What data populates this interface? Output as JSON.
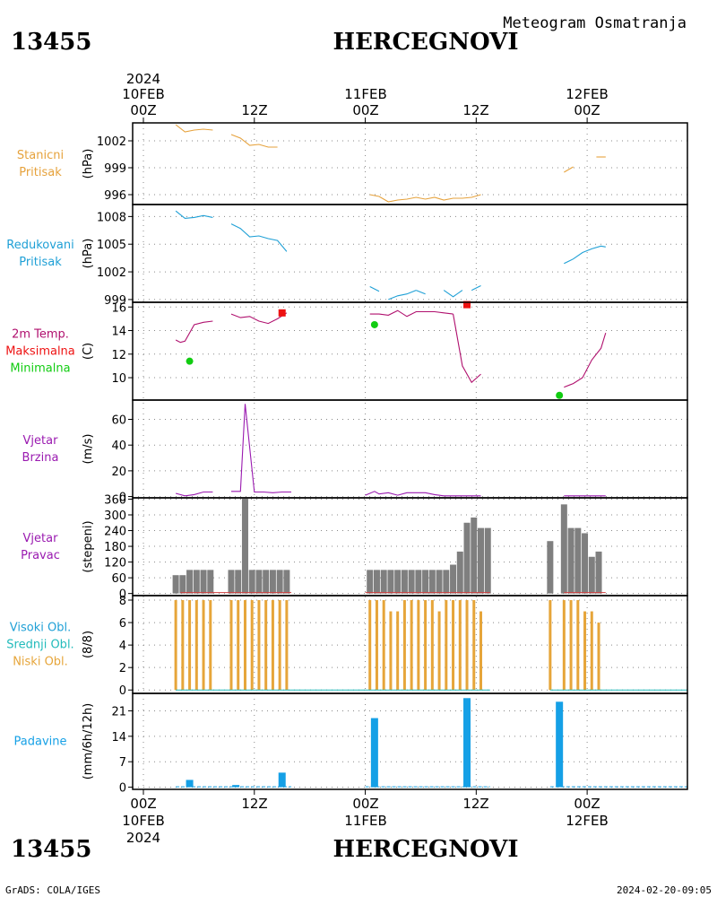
{
  "header": {
    "station_id": "13455",
    "station_name": "HERCEGNOVI",
    "meteogram_title": "Meteogram Osmatranja"
  },
  "time_axis": {
    "year_top": "2024",
    "year_bottom": "2024",
    "day_labels": [
      "10FEB",
      "11FEB",
      "12FEB"
    ],
    "hour_labels": [
      "00Z",
      "12Z",
      "00Z",
      "12Z",
      "00Z"
    ]
  },
  "footer": {
    "left": "GrADS: COLA/IGES",
    "right": "2024-02-20-09:05"
  },
  "colors": {
    "pressure_station": "#e6a23c",
    "pressure_reduced": "#1fa0d6",
    "temperature": "#b0106e",
    "tmax": "#ee1111",
    "tmin": "#11cc11",
    "wind": "#9a1ab0",
    "wind_dir_bar": "#7f7f7f",
    "cloud_low": "#e6a53a",
    "cloud_mid": "#22bbbb",
    "precip": "#15a0e6"
  },
  "chart_data": [
    {
      "type": "line",
      "panel": "station_pressure",
      "label_lines": [
        "Stanicni",
        "Pritisak"
      ],
      "unit": "(hPa)",
      "yticks": [
        996,
        999,
        1002
      ],
      "ylim": [
        994.9,
        1004.0
      ],
      "x_range_h": [
        0,
        50
      ],
      "segments": [
        {
          "x": [
            3.5,
            4.5,
            5.5,
            6.5,
            7.5
          ],
          "y": [
            1003.8,
            1003.0,
            1003.2,
            1003.3,
            1003.2
          ]
        },
        {
          "x": [
            9.5,
            10.5,
            11.5,
            12.5,
            13.5,
            14.5
          ],
          "y": [
            1002.7,
            1002.3,
            1001.5,
            1001.6,
            1001.3,
            1001.3
          ]
        },
        {
          "x": [
            24.5,
            25.5,
            26.5,
            27.5,
            28.5,
            29.5,
            30.5,
            31.5,
            32.5,
            33.5,
            34.5,
            35.5,
            36.5
          ],
          "y": [
            996.0,
            995.8,
            995.2,
            995.4,
            995.5,
            995.7,
            995.5,
            995.7,
            995.4,
            995.6,
            995.6,
            995.7,
            996.0
          ]
        },
        {
          "x": [
            45.5,
            46.5
          ],
          "y": [
            998.5,
            999.1
          ]
        },
        {
          "x": [
            49.0,
            50.0
          ],
          "y": [
            1000.2,
            1000.2
          ]
        }
      ]
    },
    {
      "type": "line",
      "panel": "reduced_pressure",
      "label_lines": [
        "Redukovani",
        "Pritisak"
      ],
      "unit": "(hPa)",
      "yticks": [
        999,
        1002,
        1005,
        1008
      ],
      "ylim": [
        998.7,
        1009.3
      ],
      "x_range_h": [
        0,
        50
      ],
      "segments": [
        {
          "x": [
            3.5,
            4.5,
            5.5,
            6.5,
            7.5
          ],
          "y": [
            1008.6,
            1007.8,
            1007.9,
            1008.1,
            1007.9
          ]
        },
        {
          "x": [
            9.5,
            10.5,
            11.5,
            12.5,
            13.5,
            14.5,
            15.5
          ],
          "y": [
            1007.2,
            1006.7,
            1005.8,
            1005.9,
            1005.6,
            1005.4,
            1004.2
          ]
        },
        {
          "x": [
            24.5,
            25.5
          ],
          "y": [
            1000.4,
            999.9
          ]
        },
        {
          "x": [
            26.5,
            27.5,
            28.5,
            29.5
          ],
          "y": [
            999.0,
            999.4,
            999.6,
            1000.0
          ]
        },
        {
          "x": [
            29.5,
            30.5
          ],
          "y": [
            1000.0,
            999.6
          ]
        },
        {
          "x": [
            32.5,
            33.5,
            34.5
          ],
          "y": [
            1000.0,
            999.3,
            1000.0
          ]
        },
        {
          "x": [
            35.5,
            36.5
          ],
          "y": [
            1000.0,
            1000.5
          ]
        },
        {
          "x": [
            45.5,
            46.5,
            47.5,
            48.5,
            49.5,
            50.0
          ],
          "y": [
            1002.9,
            1003.4,
            1004.1,
            1004.5,
            1004.8,
            1004.7
          ]
        }
      ]
    },
    {
      "type": "line",
      "panel": "temperature",
      "label_lines": [
        "2m Temp.",
        "Maksimalna",
        "Minimalna"
      ],
      "unit": "(C)",
      "yticks": [
        10,
        12,
        14,
        16
      ],
      "ylim": [
        8.1,
        16.4
      ],
      "x_range_h": [
        0,
        50
      ],
      "segments": [
        {
          "x": [
            3.5,
            4.0,
            4.5,
            5.5,
            6.5,
            7.5
          ],
          "y": [
            13.2,
            13.0,
            13.1,
            14.5,
            14.7,
            14.8
          ]
        },
        {
          "x": [
            9.5,
            10.5,
            11.5,
            12.5,
            13.5,
            14.5,
            15.5
          ],
          "y": [
            15.4,
            15.1,
            15.2,
            14.8,
            14.6,
            15.0,
            15.5
          ]
        },
        {
          "x": [
            24.5,
            25.5,
            26.5,
            27.5,
            28.5,
            29.5,
            30.5,
            31.5,
            32.5,
            33.5
          ],
          "y": [
            15.4,
            15.4,
            15.3,
            15.7,
            15.2,
            15.6,
            15.6,
            15.6,
            15.5,
            15.4
          ]
        },
        {
          "x": [
            33.5,
            34.5,
            35.5,
            36.5
          ],
          "y": [
            15.4,
            11.0,
            9.6,
            10.3
          ]
        },
        {
          "x": [
            45.5,
            46.5,
            47.5,
            48.5,
            49.5,
            50.0
          ],
          "y": [
            9.2,
            9.5,
            10.0,
            11.5,
            12.5,
            13.8
          ]
        }
      ],
      "tmax_points": [
        {
          "x": 15.0,
          "y": 15.5
        },
        {
          "x": 35.0,
          "y": 16.2
        }
      ],
      "tmin_points": [
        {
          "x": 5.0,
          "y": 11.4
        },
        {
          "x": 25.0,
          "y": 14.5
        },
        {
          "x": 45.0,
          "y": 8.5
        }
      ]
    },
    {
      "type": "line",
      "panel": "wind_speed",
      "label_lines": [
        "Vjetar",
        "Brzina"
      ],
      "unit": "(m/s)",
      "yticks": [
        0,
        20,
        40,
        60
      ],
      "ylim": [
        -1.0,
        75.0
      ],
      "x_range_h": [
        0,
        50
      ],
      "segments": [
        {
          "x": [
            3.5,
            4.5,
            5.5,
            6.5,
            7.5
          ],
          "y": [
            2.5,
            0.5,
            1.5,
            3.5,
            3.5
          ]
        },
        {
          "x": [
            9.5,
            10.5,
            11.0,
            12.0,
            13.0,
            14.0,
            15.0,
            16.0
          ],
          "y": [
            4.0,
            4.0,
            72.0,
            3.5,
            3.5,
            3.0,
            3.5,
            3.5
          ]
        },
        {
          "x": [
            24.0,
            25.0,
            25.5,
            26.5,
            27.5,
            28.5,
            29.5,
            30.5,
            31.5,
            32.5,
            33.5,
            34.5,
            35.5,
            36.5
          ],
          "y": [
            1.0,
            4.0,
            2.0,
            3.0,
            1.0,
            3.0,
            3.0,
            3.0,
            1.5,
            0.5,
            0.5,
            0.5,
            0.5,
            0.5
          ]
        },
        {
          "x": [
            45.5,
            46.5,
            47.5,
            48.5,
            49.5,
            50.0
          ],
          "y": [
            0.5,
            0.5,
            0.5,
            0.5,
            0.5,
            0.5
          ]
        }
      ]
    },
    {
      "type": "bar",
      "panel": "wind_direction",
      "label_lines": [
        "Vjetar",
        "Pravac"
      ],
      "unit": "(stepeni)",
      "yticks": [
        0,
        60,
        120,
        180,
        240,
        300,
        360
      ],
      "ylim": [
        -8,
        365
      ],
      "x_range_h": [
        0,
        50
      ],
      "bars": [
        {
          "x": 3.5,
          "v": 70
        },
        {
          "x": 4.25,
          "v": 70
        },
        {
          "x": 5.0,
          "v": 90
        },
        {
          "x": 5.75,
          "v": 90
        },
        {
          "x": 6.5,
          "v": 90
        },
        {
          "x": 7.25,
          "v": 90
        },
        {
          "x": 9.5,
          "v": 90
        },
        {
          "x": 10.25,
          "v": 90
        },
        {
          "x": 11.0,
          "v": 370
        },
        {
          "x": 11.75,
          "v": 90
        },
        {
          "x": 12.5,
          "v": 90
        },
        {
          "x": 13.25,
          "v": 90
        },
        {
          "x": 14.0,
          "v": 90
        },
        {
          "x": 14.75,
          "v": 90
        },
        {
          "x": 15.5,
          "v": 90
        },
        {
          "x": 24.5,
          "v": 90
        },
        {
          "x": 25.25,
          "v": 90
        },
        {
          "x": 26.0,
          "v": 90
        },
        {
          "x": 26.75,
          "v": 90
        },
        {
          "x": 27.5,
          "v": 90
        },
        {
          "x": 28.25,
          "v": 90
        },
        {
          "x": 29.0,
          "v": 90
        },
        {
          "x": 29.75,
          "v": 90
        },
        {
          "x": 30.5,
          "v": 90
        },
        {
          "x": 31.25,
          "v": 90
        },
        {
          "x": 32.0,
          "v": 90
        },
        {
          "x": 32.75,
          "v": 90
        },
        {
          "x": 33.5,
          "v": 110
        },
        {
          "x": 34.25,
          "v": 160
        },
        {
          "x": 35.0,
          "v": 270
        },
        {
          "x": 35.75,
          "v": 290
        },
        {
          "x": 36.5,
          "v": 250
        },
        {
          "x": 37.25,
          "v": 250
        },
        {
          "x": 44.0,
          "v": 200
        },
        {
          "x": 45.5,
          "v": 340
        },
        {
          "x": 46.25,
          "v": 250
        },
        {
          "x": 47.0,
          "v": 250
        },
        {
          "x": 47.75,
          "v": 230
        },
        {
          "x": 48.5,
          "v": 140
        },
        {
          "x": 49.25,
          "v": 160
        }
      ]
    },
    {
      "type": "bar",
      "panel": "cloud_cover",
      "label_lines": [
        "Visoki Obl.",
        "Srednji Obl.",
        "Niski Obl."
      ],
      "unit": "(8/8)",
      "yticks": [
        0,
        2,
        4,
        6,
        8
      ],
      "ylim": [
        -0.3,
        8.4
      ],
      "x_range_h": [
        0,
        50
      ],
      "bars": [
        {
          "x": 3.5,
          "v": 8
        },
        {
          "x": 4.25,
          "v": 8
        },
        {
          "x": 5.0,
          "v": 8
        },
        {
          "x": 5.75,
          "v": 8
        },
        {
          "x": 6.5,
          "v": 8
        },
        {
          "x": 7.25,
          "v": 8
        },
        {
          "x": 9.5,
          "v": 8
        },
        {
          "x": 10.25,
          "v": 8
        },
        {
          "x": 11.0,
          "v": 8
        },
        {
          "x": 11.75,
          "v": 8
        },
        {
          "x": 12.5,
          "v": 8
        },
        {
          "x": 13.25,
          "v": 8
        },
        {
          "x": 14.0,
          "v": 8
        },
        {
          "x": 14.75,
          "v": 8
        },
        {
          "x": 15.5,
          "v": 8
        },
        {
          "x": 24.5,
          "v": 8
        },
        {
          "x": 25.25,
          "v": 8
        },
        {
          "x": 26.0,
          "v": 8
        },
        {
          "x": 26.75,
          "v": 7
        },
        {
          "x": 27.5,
          "v": 7
        },
        {
          "x": 28.25,
          "v": 8
        },
        {
          "x": 29.0,
          "v": 8
        },
        {
          "x": 29.75,
          "v": 8
        },
        {
          "x": 30.5,
          "v": 8
        },
        {
          "x": 31.25,
          "v": 8
        },
        {
          "x": 32.0,
          "v": 7
        },
        {
          "x": 32.75,
          "v": 8
        },
        {
          "x": 33.5,
          "v": 8
        },
        {
          "x": 34.25,
          "v": 8
        },
        {
          "x": 35.0,
          "v": 8
        },
        {
          "x": 35.75,
          "v": 8
        },
        {
          "x": 36.5,
          "v": 7
        },
        {
          "x": 44.0,
          "v": 8
        },
        {
          "x": 45.5,
          "v": 8
        },
        {
          "x": 46.25,
          "v": 8
        },
        {
          "x": 47.0,
          "v": 8
        },
        {
          "x": 47.75,
          "v": 7
        },
        {
          "x": 48.5,
          "v": 7
        },
        {
          "x": 49.25,
          "v": 6
        }
      ]
    },
    {
      "type": "bar",
      "panel": "precipitation",
      "label_lines": [
        "Padavine"
      ],
      "unit": "(mm/6h/12h)",
      "yticks": [
        0,
        7,
        14,
        21
      ],
      "ylim": [
        -0.6,
        25.8
      ],
      "x_range_h": [
        0,
        50
      ],
      "bars": [
        {
          "x": 5.0,
          "v": 2.0
        },
        {
          "x": 10.0,
          "v": 0.6
        },
        {
          "x": 15.0,
          "v": 4.0
        },
        {
          "x": 25.0,
          "v": 19.0
        },
        {
          "x": 35.0,
          "v": 24.5
        },
        {
          "x": 45.0,
          "v": 23.5
        }
      ]
    }
  ]
}
